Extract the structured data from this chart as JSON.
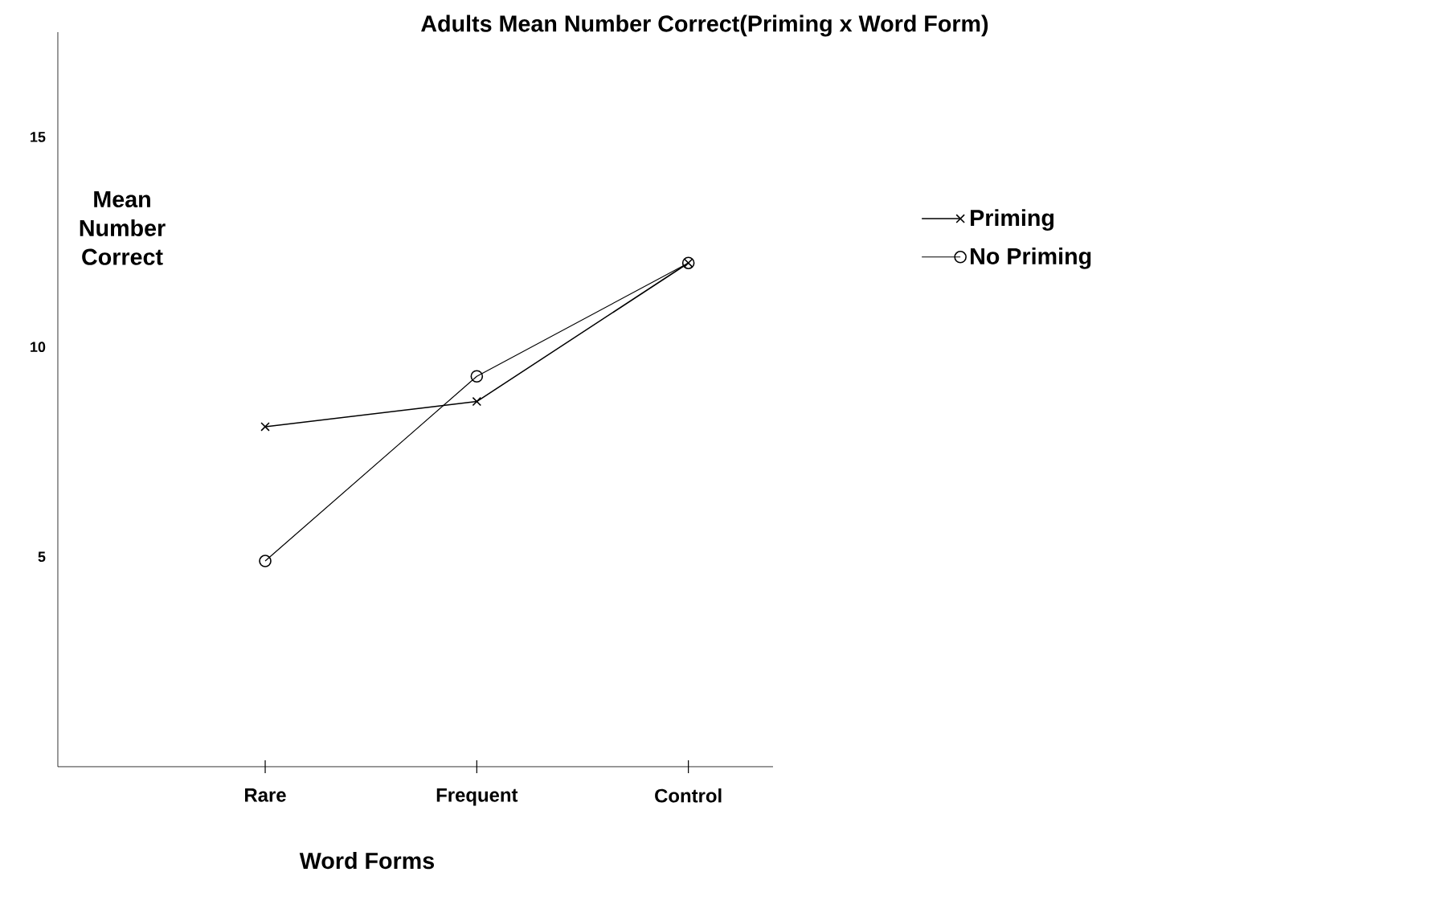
{
  "chart_data": {
    "type": "line",
    "title": "Adults Mean Number Correct(Priming x Word Form)",
    "xlabel": "Word Forms",
    "ylabel": "Mean Number Correct",
    "categories": [
      "Rare",
      "Frequent",
      "Control"
    ],
    "series": [
      {
        "name": "Priming",
        "color": "#000000",
        "marker": "cross",
        "values": [
          8.1,
          8.7,
          12.0
        ]
      },
      {
        "name": "No Priming",
        "color": "#000000",
        "marker": "circle",
        "values": [
          4.9,
          9.3,
          12.0
        ]
      }
    ],
    "ylim": [
      0,
      17.5
    ],
    "yticks": [
      5,
      10,
      15
    ],
    "legend": "right"
  }
}
